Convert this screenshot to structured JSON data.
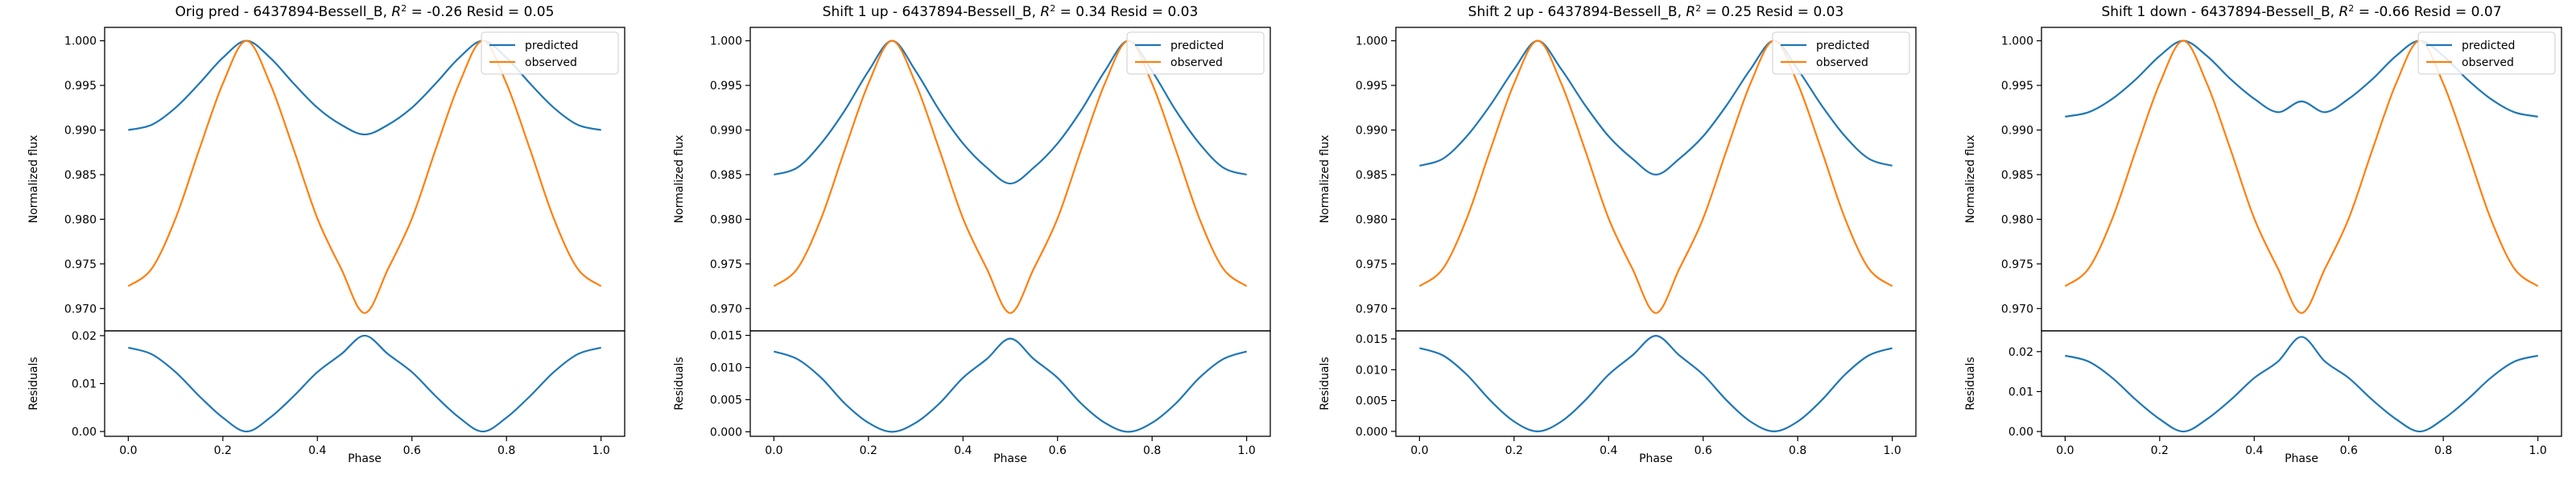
{
  "colors": {
    "predicted": "#1f77b4",
    "observed": "#ff7f0e",
    "axis": "#000000"
  },
  "chart_data": [
    {
      "type": "line",
      "title": "Orig pred - 6437894-Bessell_B, R² = -0.26 Resid = 0.05",
      "title_parts": {
        "before": "Orig pred - 6437894-Bessell_B, ",
        "r": "R",
        "sup": "2",
        "after": " = -0.26 Resid = 0.05"
      },
      "xlabel": "Phase",
      "ylabel": "Normalized flux",
      "ylabel_resid": "Residuals",
      "legend": {
        "position": "top-right",
        "entries": [
          "predicted",
          "observed"
        ]
      },
      "grid": false,
      "xlim": [
        -0.05,
        1.05
      ],
      "ylim": [
        0.9675,
        1.0015
      ],
      "resid_ylim": [
        -0.001,
        0.021
      ],
      "x_ticks": [
        "0.0",
        "0.2",
        "0.4",
        "0.6",
        "0.8",
        "1.0"
      ],
      "y_ticks": [
        "0.970",
        "0.975",
        "0.980",
        "0.985",
        "0.990",
        "0.995",
        "1.000"
      ],
      "resid_ticks": [
        "0.00",
        "0.01",
        "0.02"
      ],
      "x": [
        0,
        0.05,
        0.1,
        0.15,
        0.2,
        0.25,
        0.3,
        0.35,
        0.4,
        0.45,
        0.5,
        0.55,
        0.6,
        0.65,
        0.7,
        0.75,
        0.8,
        0.85,
        0.9,
        0.95,
        1.0
      ],
      "series": [
        {
          "name": "predicted",
          "values": [
            0.99,
            0.9906,
            0.9925,
            0.9952,
            0.9981,
            1.0,
            0.9981,
            0.9952,
            0.9925,
            0.9906,
            0.9895,
            0.9906,
            0.9925,
            0.9952,
            0.9981,
            1.0,
            0.9981,
            0.9952,
            0.9925,
            0.9906,
            0.99
          ]
        },
        {
          "name": "observed",
          "values": [
            0.9725,
            0.9745,
            0.9801,
            0.9878,
            0.9952,
            1.0,
            0.9952,
            0.9878,
            0.9801,
            0.9745,
            0.9695,
            0.9745,
            0.9801,
            0.9878,
            0.9952,
            1.0,
            0.9952,
            0.9878,
            0.9801,
            0.9745,
            0.9725
          ]
        }
      ],
      "residuals": [
        0.0175,
        0.0161,
        0.0124,
        0.0074,
        0.0029,
        0.0,
        0.0029,
        0.0074,
        0.0124,
        0.0161,
        0.02,
        0.0161,
        0.0124,
        0.0074,
        0.0029,
        0.0,
        0.0029,
        0.0074,
        0.0124,
        0.0161,
        0.0175
      ]
    },
    {
      "type": "line",
      "title": "Shift 1 up - 6437894-Bessell_B, R² = 0.34 Resid = 0.03",
      "title_parts": {
        "before": "Shift 1 up - 6437894-Bessell_B, ",
        "r": "R",
        "sup": "2",
        "after": " = 0.34 Resid = 0.03"
      },
      "xlabel": "Phase",
      "ylabel": "Normalized flux",
      "ylabel_resid": "Residuals",
      "legend": {
        "position": "top-right",
        "entries": [
          "predicted",
          "observed"
        ]
      },
      "grid": false,
      "xlim": [
        -0.05,
        1.05
      ],
      "ylim": [
        0.9675,
        1.0015
      ],
      "resid_ylim": [
        -0.0007,
        0.0157
      ],
      "x_ticks": [
        "0.0",
        "0.2",
        "0.4",
        "0.6",
        "0.8",
        "1.0"
      ],
      "y_ticks": [
        "0.970",
        "0.975",
        "0.980",
        "0.985",
        "0.990",
        "0.995",
        "1.000"
      ],
      "resid_ticks": [
        "0.000",
        "0.005",
        "0.010",
        "0.015"
      ],
      "x": [
        0,
        0.05,
        0.1,
        0.15,
        0.2,
        0.25,
        0.3,
        0.35,
        0.4,
        0.45,
        0.5,
        0.55,
        0.6,
        0.65,
        0.7,
        0.75,
        0.8,
        0.85,
        0.9,
        0.95,
        1.0
      ],
      "series": [
        {
          "name": "predicted",
          "values": [
            0.985,
            0.9858,
            0.9885,
            0.9922,
            0.9966,
            1.0,
            0.9966,
            0.9922,
            0.9885,
            0.9858,
            0.984,
            0.9858,
            0.9885,
            0.9922,
            0.9966,
            1.0,
            0.9966,
            0.9922,
            0.9885,
            0.9858,
            0.985
          ]
        },
        {
          "name": "observed",
          "values": [
            0.9725,
            0.9745,
            0.9801,
            0.9878,
            0.9952,
            1.0,
            0.9952,
            0.9878,
            0.9801,
            0.9745,
            0.9695,
            0.9745,
            0.9801,
            0.9878,
            0.9952,
            1.0,
            0.9952,
            0.9878,
            0.9801,
            0.9745,
            0.9725
          ]
        }
      ],
      "residuals": [
        0.0125,
        0.0113,
        0.0084,
        0.0044,
        0.0014,
        0.0,
        0.0014,
        0.0044,
        0.0084,
        0.0113,
        0.0145,
        0.0113,
        0.0084,
        0.0044,
        0.0014,
        0.0,
        0.0014,
        0.0044,
        0.0084,
        0.0113,
        0.0125
      ]
    },
    {
      "type": "line",
      "title": "Shift 2 up - 6437894-Bessell_B, R² = 0.25 Resid = 0.03",
      "title_parts": {
        "before": "Shift 2 up - 6437894-Bessell_B, ",
        "r": "R",
        "sup": "2",
        "after": " = 0.25 Resid = 0.03"
      },
      "xlabel": "Phase",
      "ylabel": "Normalized flux",
      "ylabel_resid": "Residuals",
      "legend": {
        "position": "top-right",
        "entries": [
          "predicted",
          "observed"
        ]
      },
      "grid": false,
      "xlim": [
        -0.05,
        1.05
      ],
      "ylim": [
        0.9675,
        1.0015
      ],
      "resid_ylim": [
        -0.0008,
        0.0163
      ],
      "x_ticks": [
        "0.0",
        "0.2",
        "0.4",
        "0.6",
        "0.8",
        "1.0"
      ],
      "y_ticks": [
        "0.970",
        "0.975",
        "0.980",
        "0.985",
        "0.990",
        "0.995",
        "1.000"
      ],
      "resid_ticks": [
        "0.000",
        "0.005",
        "0.010",
        "0.015"
      ],
      "x": [
        0,
        0.05,
        0.1,
        0.15,
        0.2,
        0.25,
        0.3,
        0.35,
        0.4,
        0.45,
        0.5,
        0.55,
        0.6,
        0.65,
        0.7,
        0.75,
        0.8,
        0.85,
        0.9,
        0.95,
        1.0
      ],
      "series": [
        {
          "name": "predicted",
          "values": [
            0.986,
            0.9868,
            0.9893,
            0.9928,
            0.9968,
            1.0,
            0.9968,
            0.9928,
            0.9893,
            0.9868,
            0.985,
            0.9868,
            0.9893,
            0.9928,
            0.9968,
            1.0,
            0.9968,
            0.9928,
            0.9893,
            0.9868,
            0.986
          ]
        },
        {
          "name": "observed",
          "values": [
            0.9725,
            0.9745,
            0.9801,
            0.9878,
            0.9952,
            1.0,
            0.9952,
            0.9878,
            0.9801,
            0.9745,
            0.9695,
            0.9745,
            0.9801,
            0.9878,
            0.9952,
            1.0,
            0.9952,
            0.9878,
            0.9801,
            0.9745,
            0.9725
          ]
        }
      ],
      "residuals": [
        0.0135,
        0.0123,
        0.0092,
        0.005,
        0.0016,
        0.0,
        0.0016,
        0.005,
        0.0092,
        0.0123,
        0.0155,
        0.0123,
        0.0092,
        0.005,
        0.0016,
        0.0,
        0.0016,
        0.005,
        0.0092,
        0.0123,
        0.0135
      ]
    },
    {
      "type": "line",
      "title": "Shift 1 down - 6437894-Bessell_B, R² = -0.66 Resid = 0.07",
      "title_parts": {
        "before": "Shift 1 down - 6437894-Bessell_B, ",
        "r": "R",
        "sup": "2",
        "after": " = -0.66 Resid = 0.07"
      },
      "xlabel": "Phase",
      "ylabel": "Normalized flux",
      "ylabel_resid": "Residuals",
      "legend": {
        "position": "top-right",
        "entries": [
          "predicted",
          "observed"
        ]
      },
      "grid": false,
      "xlim": [
        -0.05,
        1.05
      ],
      "ylim": [
        0.9675,
        1.0015
      ],
      "resid_ylim": [
        -0.0012,
        0.0252
      ],
      "x_ticks": [
        "0.0",
        "0.2",
        "0.4",
        "0.6",
        "0.8",
        "1.0"
      ],
      "y_ticks": [
        "0.970",
        "0.975",
        "0.980",
        "0.985",
        "0.990",
        "0.995",
        "1.000"
      ],
      "resid_ticks": [
        "0.00",
        "0.01",
        "0.02"
      ],
      "x": [
        0,
        0.05,
        0.1,
        0.15,
        0.2,
        0.25,
        0.3,
        0.35,
        0.4,
        0.45,
        0.5,
        0.55,
        0.6,
        0.65,
        0.7,
        0.75,
        0.8,
        0.85,
        0.9,
        0.95,
        1.0
      ],
      "series": [
        {
          "name": "predicted",
          "values": [
            0.9915,
            0.992,
            0.9935,
            0.9957,
            0.9983,
            1.0,
            0.9983,
            0.9957,
            0.9935,
            0.992,
            0.9932,
            0.992,
            0.9935,
            0.9957,
            0.9983,
            1.0,
            0.9983,
            0.9957,
            0.9935,
            0.992,
            0.9915
          ]
        },
        {
          "name": "observed",
          "values": [
            0.9725,
            0.9745,
            0.9801,
            0.9878,
            0.9952,
            1.0,
            0.9952,
            0.9878,
            0.9801,
            0.9745,
            0.9695,
            0.9745,
            0.9801,
            0.9878,
            0.9952,
            1.0,
            0.9952,
            0.9878,
            0.9801,
            0.9745,
            0.9725
          ]
        }
      ],
      "residuals": [
        0.019,
        0.0175,
        0.0134,
        0.0079,
        0.0031,
        0.0,
        0.0031,
        0.0079,
        0.0134,
        0.0175,
        0.0237,
        0.0175,
        0.0134,
        0.0079,
        0.0031,
        0.0,
        0.0031,
        0.0079,
        0.0134,
        0.0175,
        0.019
      ]
    }
  ]
}
